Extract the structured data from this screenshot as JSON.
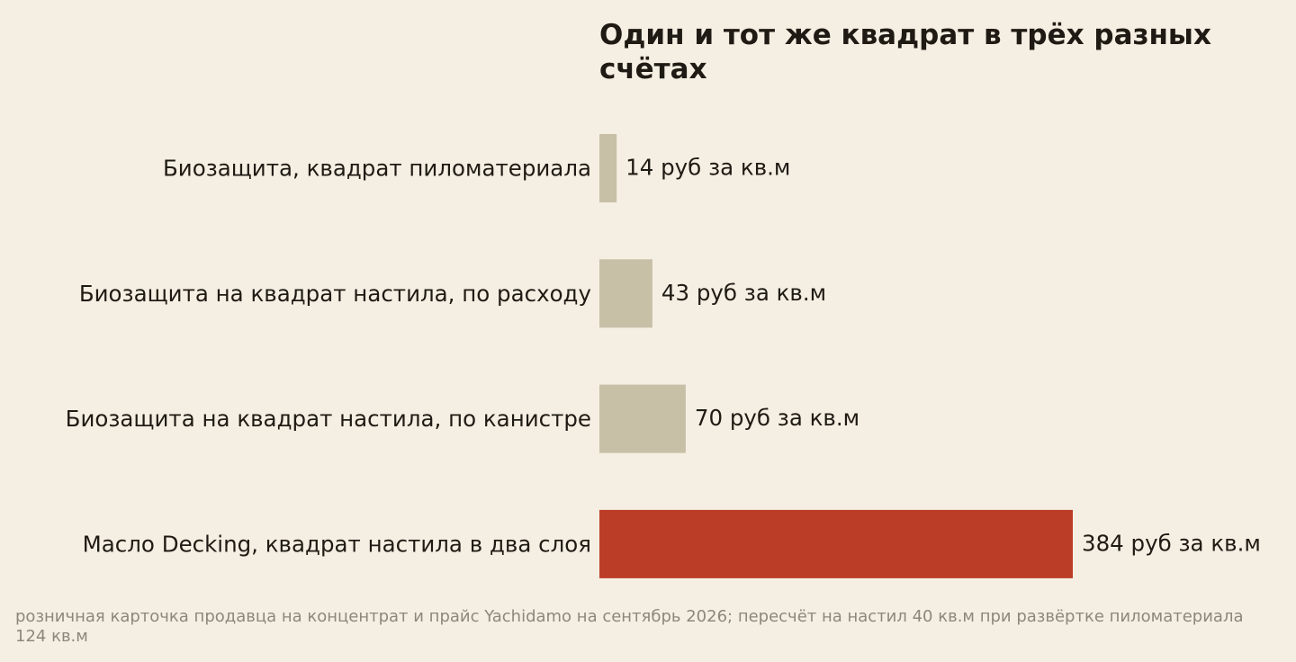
{
  "chart_data": {
    "type": "bar",
    "orientation": "horizontal",
    "title": "Один и тот же квадрат в трёх разных счётах",
    "categories": [
      "Биозащита, квадрат пиломатериала",
      "Биозащита на квадрат настила, по расходу",
      "Биозащита на квадрат настила, по канистре",
      "Масло Decking, квадрат настила в два слоя"
    ],
    "values": [
      14,
      43,
      70,
      384
    ],
    "value_labels": [
      "14 руб за кв.м",
      "43 руб за кв.м",
      "70 руб за кв.м",
      "384 руб за кв.м"
    ],
    "colors": [
      "#c8bfa7",
      "#c8bfa7",
      "#c8bfa7",
      "#bc3d27"
    ],
    "xlim": [
      0,
      384
    ],
    "grid": false,
    "legend": "none",
    "xlabel": "",
    "ylabel": ""
  },
  "source_note": "розничная карточка продавца на концентрат и прайс Yachidamo на сентябрь 2026; пересчёт на настил 40 кв.м при развёртке пиломатериала 124 кв.м"
}
